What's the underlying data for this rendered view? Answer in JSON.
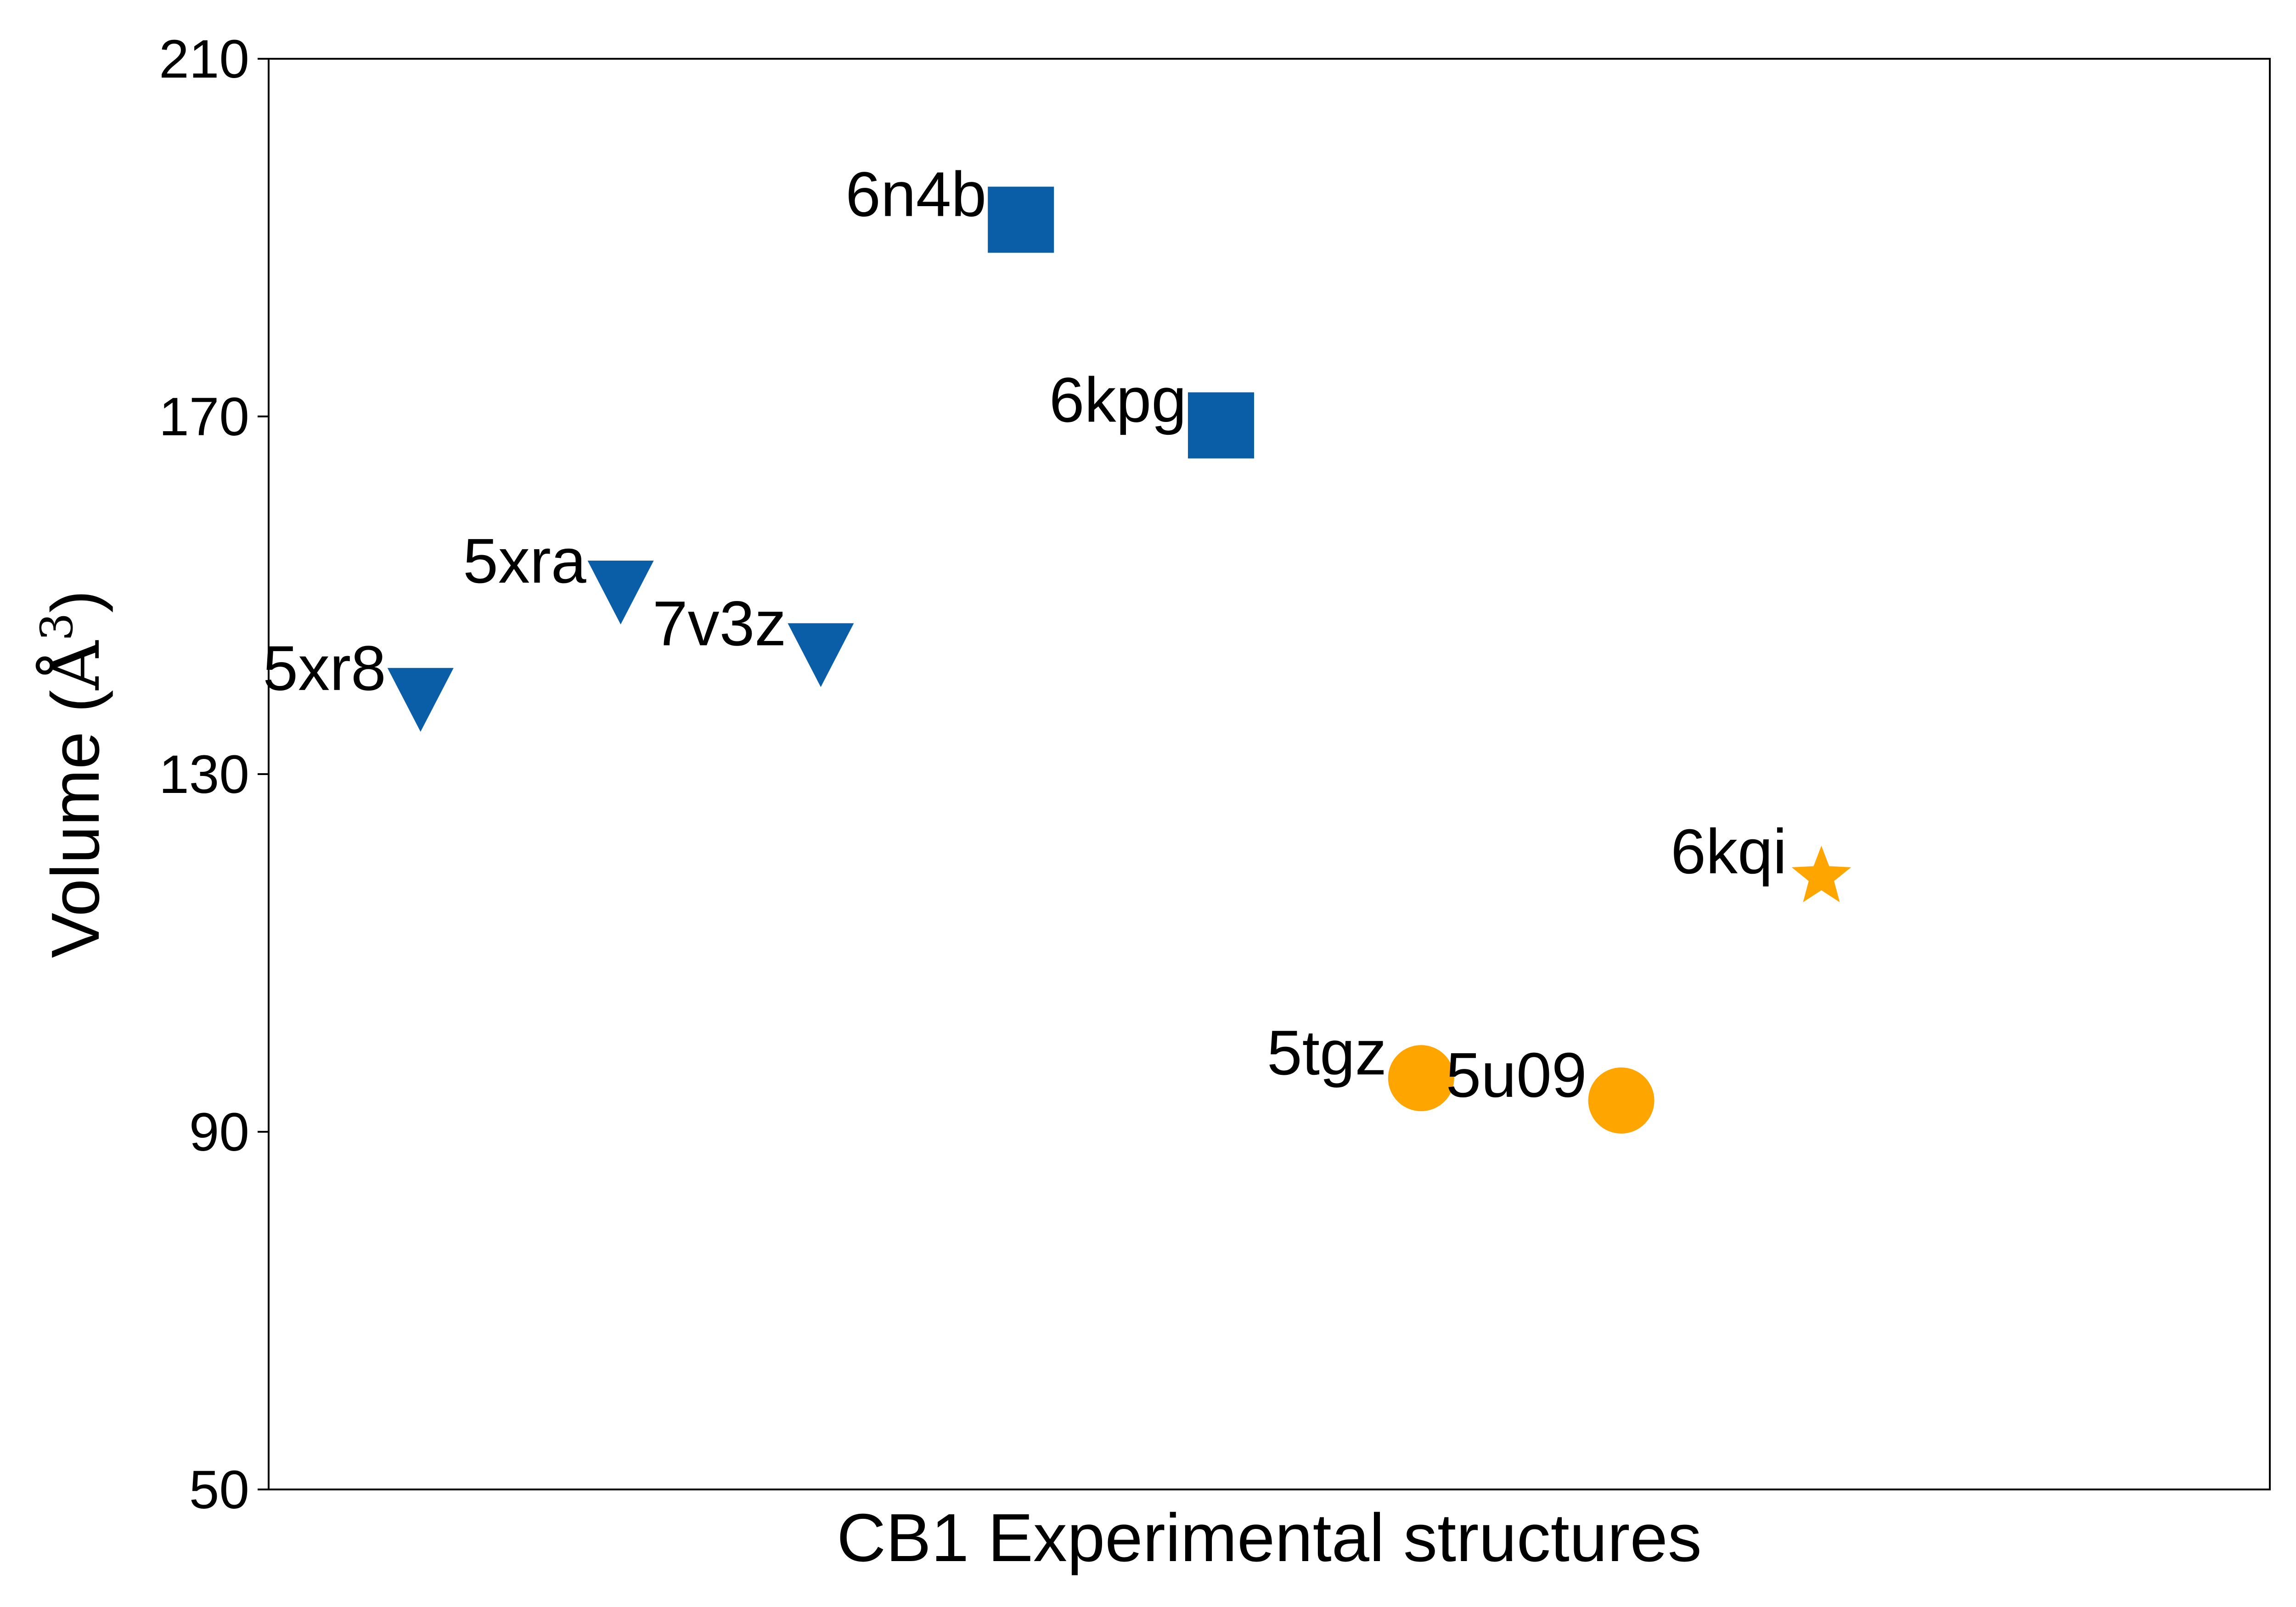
{
  "chart_data": {
    "type": "scatter",
    "title": "",
    "xlabel": "CB1 Experimental structures",
    "ylabel": "Volume (",
    "ylabel_unit": "Å",
    "ylabel_exponent": "3",
    "ylabel_close": ")",
    "ylim": [
      50,
      210
    ],
    "yticks": [
      50,
      90,
      130,
      170,
      210
    ],
    "xlim": [
      0,
      10
    ],
    "grid": false,
    "colors": {
      "blue": "#0a5ea8",
      "orange": "#ffa500"
    },
    "points": [
      {
        "label": "5xr8",
        "x": 1,
        "y": 139,
        "marker": "triangle-down",
        "color": "#0a5ea8"
      },
      {
        "label": "5xra",
        "x": 2,
        "y": 151,
        "marker": "triangle-down",
        "color": "#0a5ea8"
      },
      {
        "label": "7v3z",
        "x": 3,
        "y": 144,
        "marker": "triangle-down",
        "color": "#0a5ea8"
      },
      {
        "label": "6n4b",
        "x": 4,
        "y": 192,
        "marker": "square",
        "color": "#0a5ea8"
      },
      {
        "label": "6kpg",
        "x": 5,
        "y": 169,
        "marker": "square",
        "color": "#0a5ea8"
      },
      {
        "label": "5tgz",
        "x": 6,
        "y": 96,
        "marker": "circle",
        "color": "#ffa500"
      },
      {
        "label": "5u09",
        "x": 7,
        "y": 93.5,
        "marker": "circle",
        "color": "#ffa500"
      },
      {
        "label": "6kqi",
        "x": 8,
        "y": 118.5,
        "marker": "star",
        "color": "#ffa500"
      }
    ]
  }
}
